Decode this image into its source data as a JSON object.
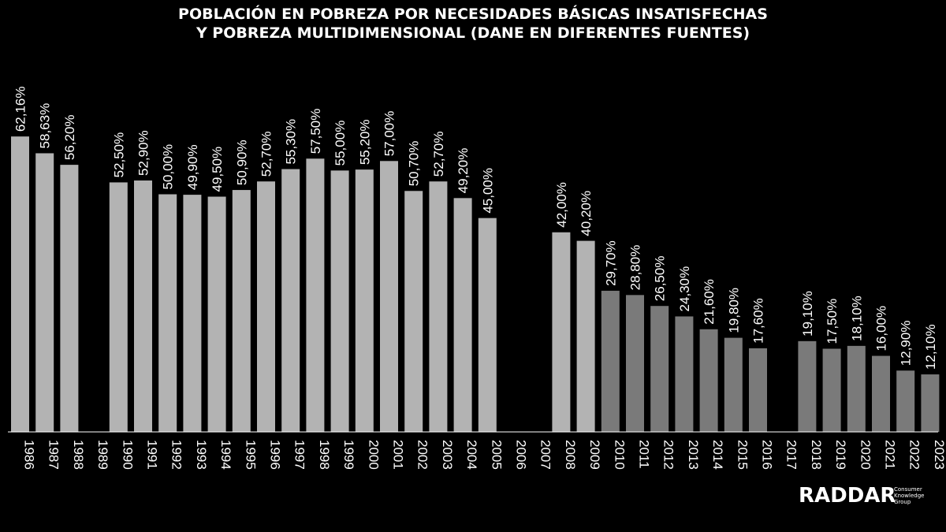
{
  "title": {
    "line1": "POBLACIÓN EN POBREZA POR NECESIDADES BÁSICAS INSATISFECHAS",
    "line2": "Y POBREZA MULTIDIMENSIONAL (DANE EN DIFERENTES FUENTES)"
  },
  "brand": {
    "name": "RADDAR",
    "subtitle_lines": [
      "Consumer",
      "Knowledge",
      "Group"
    ]
  },
  "colors": {
    "background": "#000000",
    "bar_light": "#b3b3b3",
    "bar_dark": "#7a7a7a",
    "text": "#ffffff"
  },
  "chart_data": {
    "type": "bar",
    "title": "POBLACIÓN EN POBREZA POR NECESIDADES BÁSICAS INSATISFECHAS Y POBREZA MULTIDIMENSIONAL (DANE EN DIFERENTES FUENTES)",
    "xlabel": "",
    "ylabel": "",
    "ylim": [
      0,
      70
    ],
    "grid": false,
    "categories": [
      "1986",
      "1987",
      "1988",
      "1989",
      "1990",
      "1991",
      "1992",
      "1993",
      "1994",
      "1995",
      "1996",
      "1997",
      "1998",
      "1999",
      "2000",
      "2001",
      "2002",
      "2003",
      "2004",
      "2005",
      "2006",
      "2007",
      "2008",
      "2009",
      "2010",
      "2011",
      "2012",
      "2013",
      "2014",
      "2015",
      "2016",
      "2017",
      "2018",
      "2019",
      "2020",
      "2021",
      "2022",
      "2023"
    ],
    "values": [
      62.16,
      58.63,
      56.2,
      null,
      52.5,
      52.9,
      50.0,
      49.9,
      49.5,
      50.9,
      52.7,
      55.3,
      57.5,
      55.0,
      55.2,
      57.0,
      50.7,
      52.7,
      49.2,
      45.0,
      null,
      null,
      42.0,
      40.2,
      29.7,
      28.8,
      26.5,
      24.3,
      21.6,
      19.8,
      17.6,
      null,
      19.1,
      17.5,
      18.1,
      16.0,
      12.9,
      12.1
    ],
    "value_labels": [
      "62,16%",
      "58,63%",
      "56,20%",
      "",
      "52,50%",
      "52,90%",
      "50,00%",
      "49,90%",
      "49,50%",
      "50,90%",
      "52,70%",
      "55,30%",
      "57,50%",
      "55,00%",
      "55,20%",
      "57,00%",
      "50,70%",
      "52,70%",
      "49,20%",
      "45,00%",
      "",
      "",
      "42,00%",
      "40,20%",
      "29,70%",
      "28,80%",
      "26,50%",
      "24,30%",
      "21,60%",
      "19,80%",
      "17,60%",
      "",
      "19,10%",
      "17,50%",
      "18,10%",
      "16,00%",
      "12,90%",
      "12,10%"
    ],
    "shade": [
      "light",
      "light",
      "light",
      "light",
      "light",
      "light",
      "light",
      "light",
      "light",
      "light",
      "light",
      "light",
      "light",
      "light",
      "light",
      "light",
      "light",
      "light",
      "light",
      "light",
      "light",
      "light",
      "light",
      "light",
      "dark",
      "dark",
      "dark",
      "dark",
      "dark",
      "dark",
      "dark",
      "dark",
      "dark",
      "dark",
      "dark",
      "dark",
      "dark",
      "dark"
    ]
  }
}
